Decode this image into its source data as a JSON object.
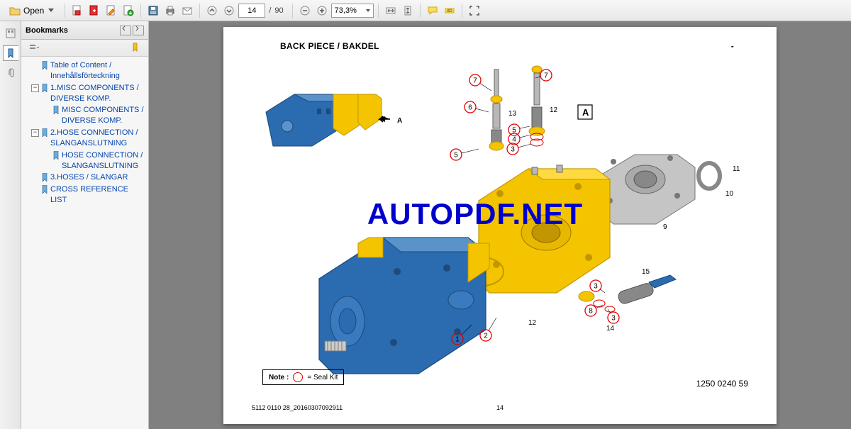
{
  "toolbar": {
    "open_label": "Open",
    "page_current": "14",
    "page_separator": "/",
    "page_total": "90",
    "zoom_label": "73,3%"
  },
  "bookmarks_panel": {
    "title": "Bookmarks"
  },
  "bookmarks": [
    {
      "level": 0,
      "expandable": false,
      "label": "Table of Content / Innehållsförteckning"
    },
    {
      "level": 0,
      "expandable": true,
      "expand_char": "−",
      "label": "1.MISC COMPONENTS / DIVERSE KOMP."
    },
    {
      "level": 1,
      "expandable": false,
      "label": "MISC COMPONENTS / DIVERSE KOMP."
    },
    {
      "level": 0,
      "expandable": true,
      "expand_char": "−",
      "label": "2.HOSE CONNECTION / SLANGANSLUTNING"
    },
    {
      "level": 1,
      "expandable": false,
      "label": "HOSE CONNECTION / SLANGANSLUTNING"
    },
    {
      "level": 0,
      "expandable": false,
      "label": "3.HOSES / SLANGAR"
    },
    {
      "level": 0,
      "expandable": false,
      "label": "CROSS REFERENCE LIST"
    }
  ],
  "document": {
    "title": "BACK PIECE / BAKDEL",
    "title_dash": "-",
    "watermark": "AUTOPDF.NET",
    "view_label_a": "A",
    "view_marker_a": "A",
    "note_prefix": "Note :",
    "note_text": "= Seal Kit",
    "footer_code": "1250 0240 59",
    "footer_left": "5112 0110 28_20160307092911",
    "footer_center": "14",
    "callouts": {
      "c1": "1",
      "c2": "2",
      "c3": "3",
      "c4": "4",
      "c5": "5",
      "c6": "6",
      "c7": "7",
      "c8": "8",
      "c9": "9",
      "c10": "10",
      "c11": "11",
      "c12": "12",
      "c13": "13",
      "c14": "14",
      "c15": "15"
    }
  },
  "colors": {
    "pump_blue": "#2b6bb0",
    "pump_blue_dk": "#1d4a7a",
    "pump_yellow": "#f4c400",
    "pump_yellow_dk": "#c29600",
    "gray_metal": "#b8b8b8",
    "gray_metal_dk": "#888888",
    "callout_red": "#e30000"
  }
}
